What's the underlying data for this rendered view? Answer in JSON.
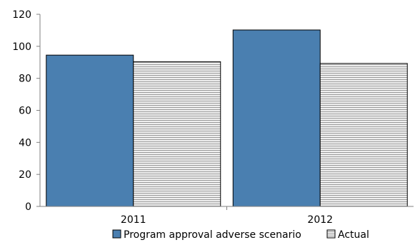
{
  "chart_data": {
    "type": "bar",
    "categories": [
      "2011",
      "2012"
    ],
    "series": [
      {
        "name": "Program approval adverse scenario",
        "values": [
          94.5,
          110.2
        ],
        "color": "#4a7fb0",
        "pattern": "solid"
      },
      {
        "name": "Actual",
        "values": [
          90.4,
          89.3
        ],
        "color": "#d9d9d9",
        "pattern": "horizontal-hatch"
      }
    ],
    "ylim": [
      0,
      120
    ],
    "yticks": [
      "0",
      "20",
      "40",
      "60",
      "80",
      "100",
      "120"
    ],
    "grid": false,
    "legend_position": "bottom-center",
    "title": "",
    "xlabel": "",
    "ylabel": ""
  }
}
